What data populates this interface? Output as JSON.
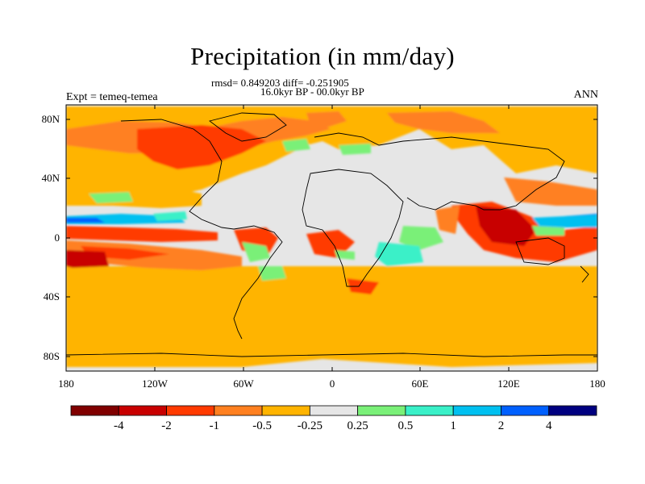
{
  "title": "Precipitation (in mm/day)",
  "stats_line": "rmsd= 0.849203 diff= -0.251905",
  "period": "16.0kyr BP - 00.0kyr BP",
  "expt": "Expt = temeq-temea",
  "season": "ANN",
  "lat_labels": [
    "80N",
    "40N",
    "0",
    "40S",
    "80S"
  ],
  "lon_labels": [
    "180",
    "120W",
    "60W",
    "0",
    "60E",
    "120E",
    "180"
  ],
  "colorbar": {
    "colors": [
      "#800000",
      "#c80000",
      "#ff3a00",
      "#ff8020",
      "#ffb400",
      "#e6e6e6",
      "#7af078",
      "#3af0c8",
      "#00c0f0",
      "#0060ff",
      "#000080"
    ],
    "labels": [
      "-4",
      "-2",
      "-1",
      "-0.5",
      "-0.25",
      "0.25",
      "0.5",
      "1",
      "2",
      "4"
    ]
  },
  "chart_data": {
    "type": "heatmap",
    "title": "Precipitation (in mm/day)",
    "subtitle": "16.0kyr BP - 00.0kyr BP",
    "annotation_left": "Expt = temeq-temea",
    "annotation_right": "ANN",
    "stats": {
      "rmsd": 0.849203,
      "diff": -0.251905
    },
    "x_axis": {
      "ticks": [
        "180",
        "120W",
        "60W",
        "0",
        "60E",
        "120E",
        "180"
      ],
      "range": [
        -180,
        180
      ]
    },
    "y_axis": {
      "ticks": [
        "80N",
        "40N",
        "0",
        "40S",
        "80S"
      ],
      "range": [
        -90,
        90
      ]
    },
    "levels": [
      -4,
      -2,
      -1,
      -0.5,
      -0.25,
      0.25,
      0.5,
      1,
      2,
      4
    ],
    "units": "mm/day"
  }
}
